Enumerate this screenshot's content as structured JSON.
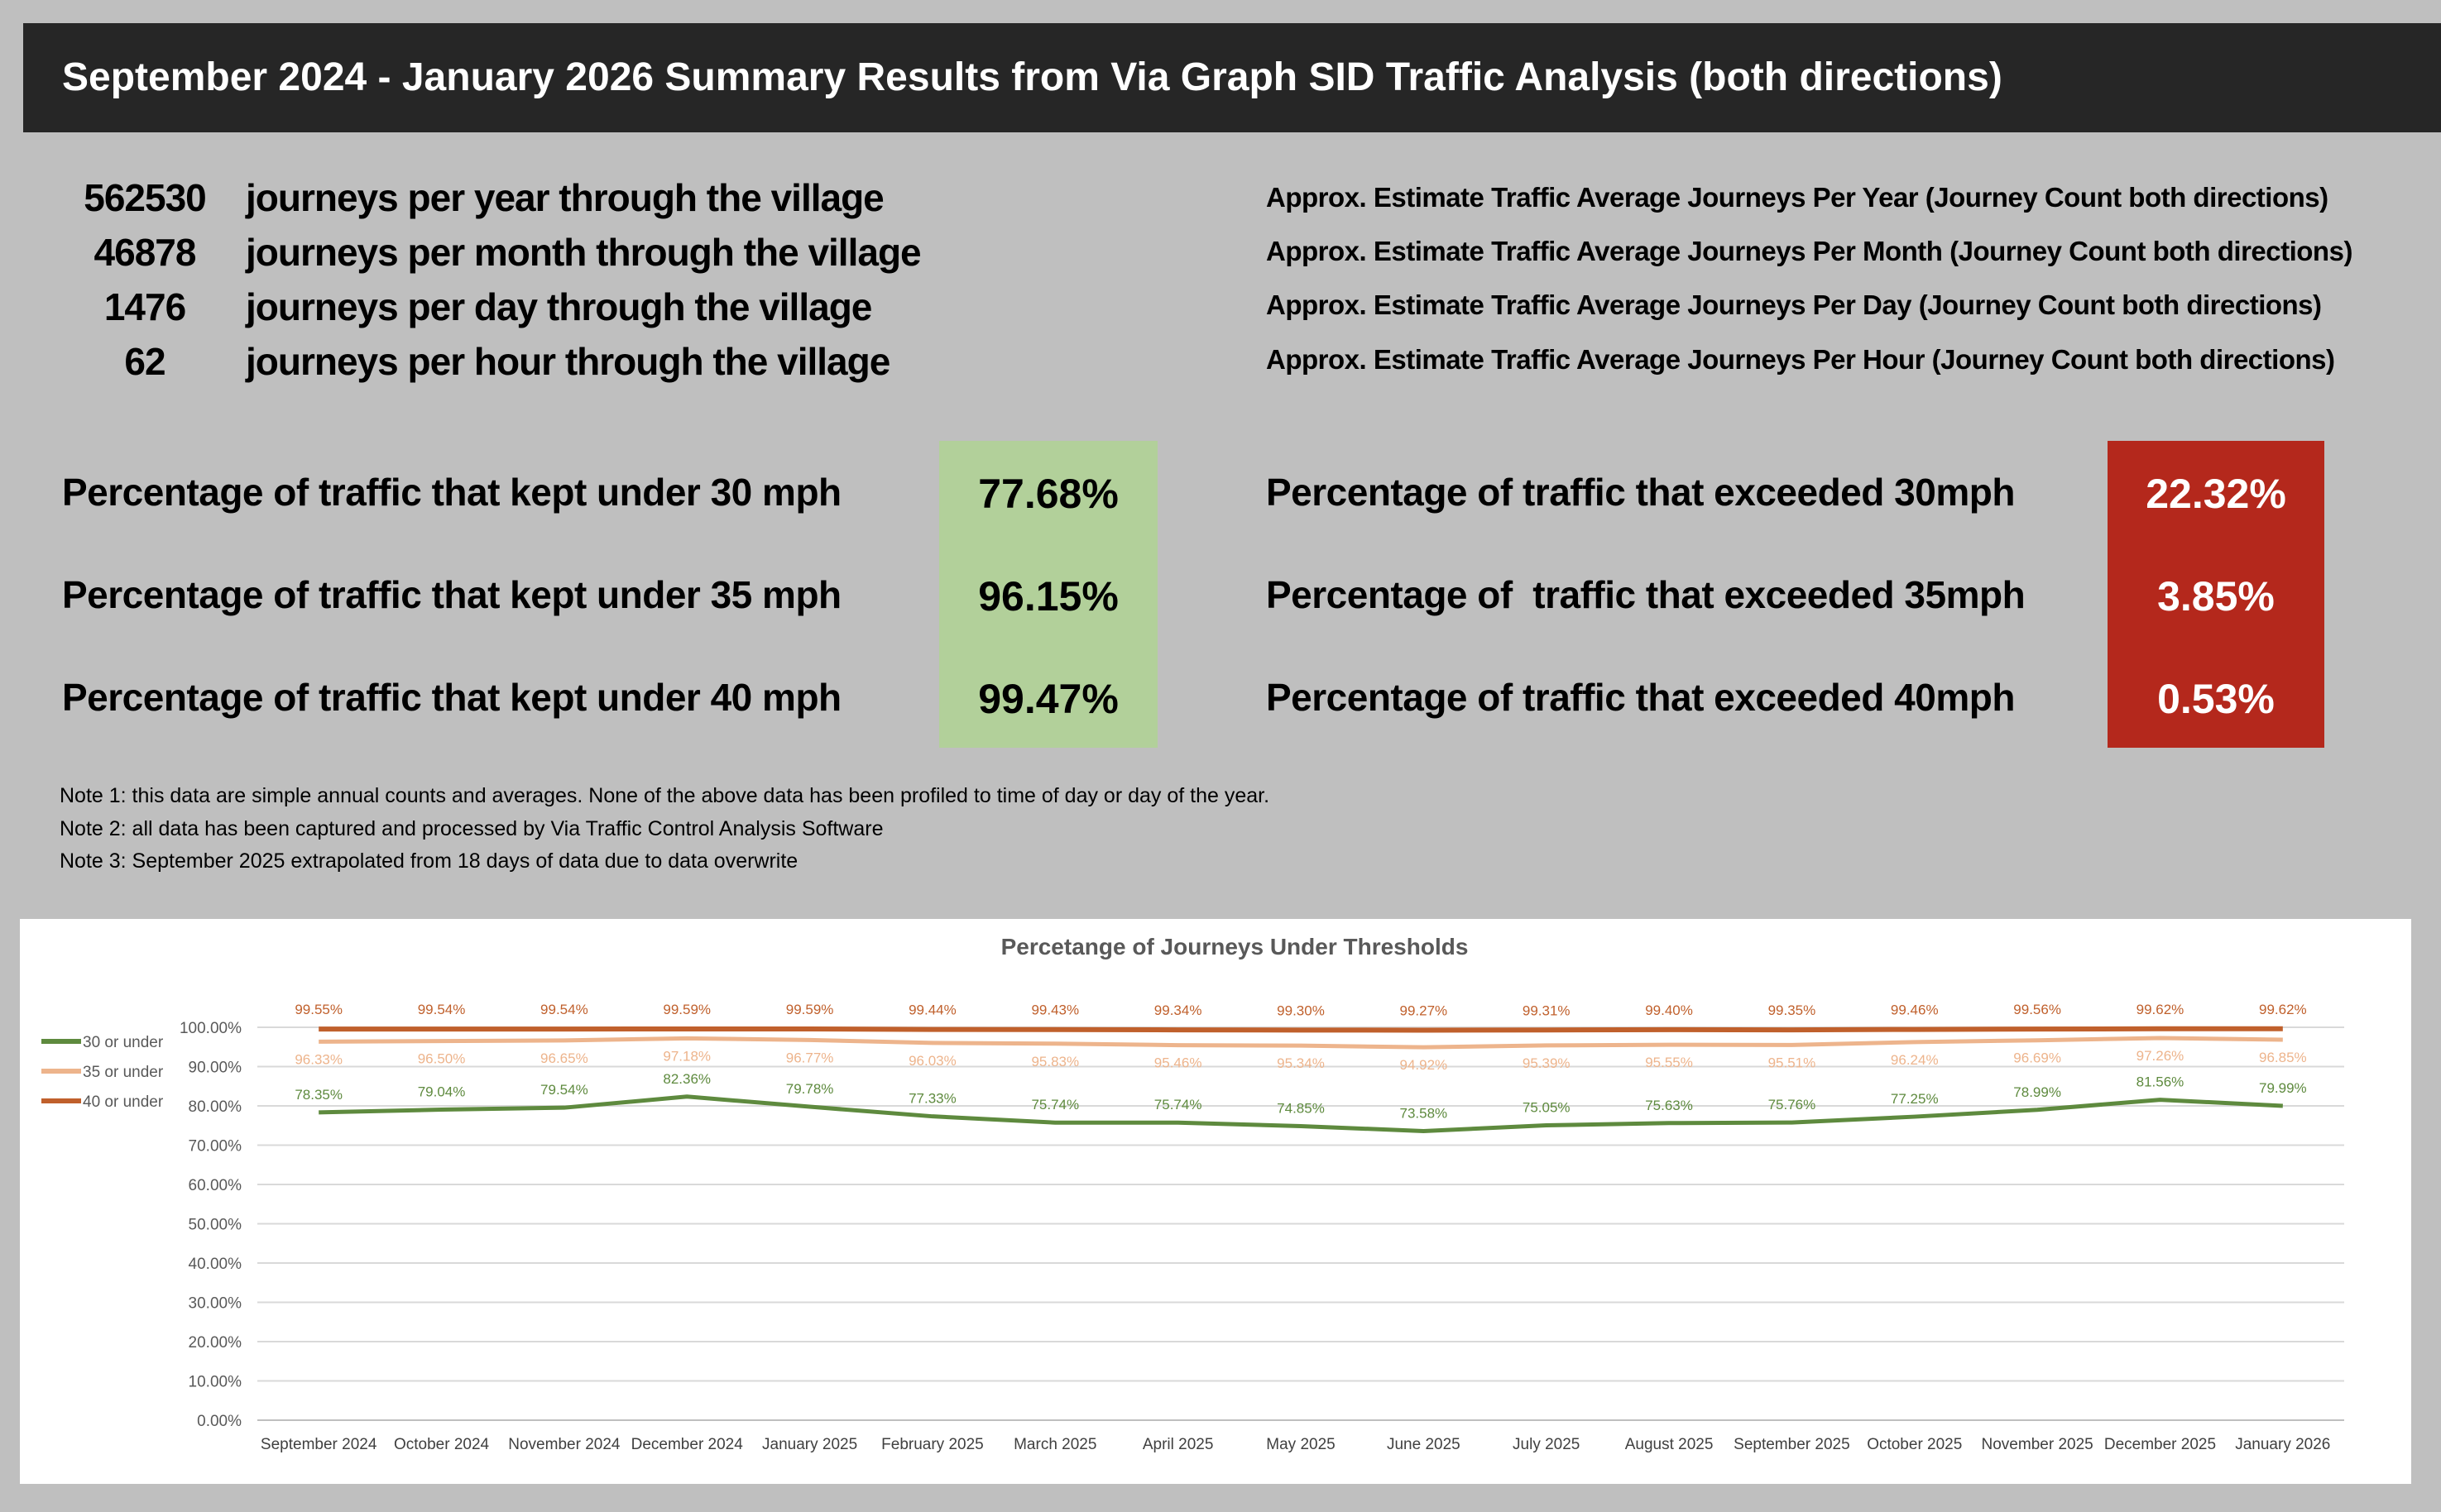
{
  "title": "September 2024 - January 2026 Summary Results from Via Graph SID Traffic Analysis (both directions)",
  "stats": [
    {
      "value": "562530",
      "label": "journeys per year through the village",
      "note": "Approx. Estimate Traffic Average Journeys Per Year (Journey Count both directions)"
    },
    {
      "value": "46878",
      "label": "journeys per month through the village",
      "note": "Approx. Estimate Traffic Average Journeys Per Month (Journey Count both directions)"
    },
    {
      "value": "1476",
      "label": "journeys per day through the village",
      "note": "Approx. Estimate Traffic Average Journeys Per Day (Journey Count both directions)"
    },
    {
      "value": "62",
      "label": "journeys per hour through the village",
      "note": "Approx. Estimate Traffic Average Journeys Per Hour (Journey Count both directions)"
    }
  ],
  "under": [
    {
      "label": "Percentage of traffic that kept under 30 mph",
      "value": "77.68%"
    },
    {
      "label": "Percentage of traffic that kept under 35 mph",
      "value": "96.15%"
    },
    {
      "label": "Percentage of traffic that kept under 40 mph",
      "value": "99.47%"
    }
  ],
  "exceeded": [
    {
      "label": "Percentage of traffic that exceeded 30mph",
      "value": "22.32%"
    },
    {
      "label": "Percentage of  traffic that exceeded 35mph",
      "value": "3.85%"
    },
    {
      "label": "Percentage of traffic that exceeded 40mph",
      "value": "0.53%"
    }
  ],
  "notes": [
    "Note 1:  this data are  simple annual counts and averages. None of the above data has been profiled to time of day or day of the year.",
    "Note 2:  all data has been captured and processed by Via Traffic Control Analysis Software",
    "Note 3:  September 2025 extrapolated from 18 days of data due to data overwrite"
  ],
  "colors": {
    "green_box": "#b2d09a",
    "red_box": "#b4281c",
    "s30": "#5e8a3e",
    "s35": "#edb48c",
    "s40": "#c0602c"
  },
  "chart_data": {
    "type": "line",
    "title": "Percetange of Journeys Under Thresholds",
    "xlabel": "",
    "ylabel": "",
    "ylim": [
      0,
      100
    ],
    "yticks": [
      "0.00%",
      "10.00%",
      "20.00%",
      "30.00%",
      "40.00%",
      "50.00%",
      "60.00%",
      "70.00%",
      "80.00%",
      "90.00%",
      "100.00%"
    ],
    "legend_position": "left",
    "grid": true,
    "categories": [
      "September 2024",
      "October 2024",
      "November 2024",
      "December 2024",
      "January 2025",
      "February 2025",
      "March 2025",
      "April 2025",
      "May 2025",
      "June 2025",
      "July 2025",
      "August 2025",
      "September 2025",
      "October 2025",
      "November 2025",
      "December 2025",
      "January 2026"
    ],
    "series": [
      {
        "name": "30 or under",
        "color": "#5e8a3e",
        "values": [
          78.35,
          79.04,
          79.54,
          82.36,
          79.78,
          77.33,
          75.74,
          75.74,
          74.85,
          73.58,
          75.05,
          75.63,
          75.76,
          77.25,
          78.99,
          81.56,
          79.99
        ]
      },
      {
        "name": "35 or under",
        "color": "#edb48c",
        "values": [
          96.33,
          96.5,
          96.65,
          97.18,
          96.77,
          96.03,
          95.83,
          95.46,
          95.34,
          94.92,
          95.39,
          95.55,
          95.51,
          96.24,
          96.69,
          97.26,
          96.85
        ]
      },
      {
        "name": "40 or under",
        "color": "#c0602c",
        "values": [
          99.55,
          99.54,
          99.54,
          99.59,
          99.59,
          99.44,
          99.43,
          99.34,
          99.3,
          99.27,
          99.31,
          99.4,
          99.35,
          99.46,
          99.56,
          99.62,
          99.62
        ]
      }
    ]
  }
}
